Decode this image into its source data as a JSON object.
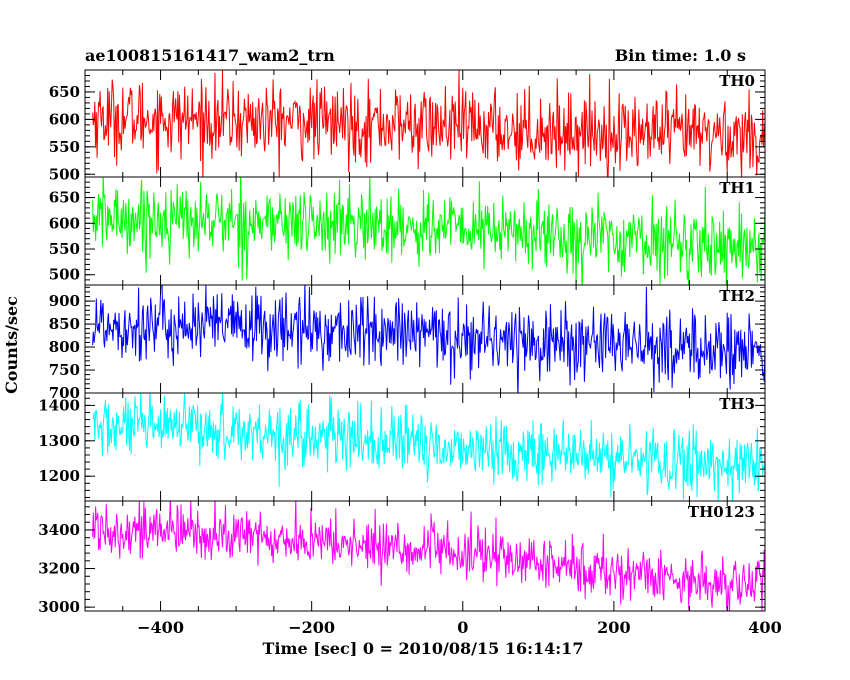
{
  "header": {
    "title": "ae100815161417_wam2_trn",
    "bin_time": "Bin time: 1.0 s"
  },
  "axes": {
    "ylabel": "Counts/sec",
    "xlabel": "Time [sec] 0 = 2010/08/15 16:14:17"
  },
  "chart_data": {
    "type": "line",
    "title": "ae100815161417_wam2_trn",
    "xlabel": "Time [sec] 0 = 2010/08/15 16:14:17",
    "ylabel": "Counts/sec",
    "x_range": [
      -500,
      400
    ],
    "xlim": [
      -500,
      400
    ],
    "xticks": [
      -400,
      -200,
      0,
      200,
      400
    ],
    "panels": [
      {
        "name": "TH0",
        "color": "#ff0000",
        "ylim": [
          495,
          690
        ],
        "yticks": [
          500,
          550,
          600,
          650
        ],
        "trend": [
          [
            -500,
            605
          ],
          [
            -350,
            600
          ],
          [
            -100,
            592
          ],
          [
            100,
            580
          ],
          [
            400,
            570
          ]
        ],
        "spread": 35
      },
      {
        "name": "TH1",
        "color": "#00ff00",
        "ylim": [
          480,
          690
        ],
        "yticks": [
          500,
          550,
          600,
          650
        ],
        "trend": [
          [
            -500,
            612
          ],
          [
            -300,
            605
          ],
          [
            0,
            590
          ],
          [
            200,
            570
          ],
          [
            400,
            555
          ]
        ],
        "spread": 35
      },
      {
        "name": "TH2",
        "color": "#0000ff",
        "ylim": [
          700,
          935
        ],
        "yticks": [
          700,
          750,
          800,
          850,
          900
        ],
        "trend": [
          [
            -500,
            850
          ],
          [
            -300,
            845
          ],
          [
            0,
            822
          ],
          [
            200,
            805
          ],
          [
            400,
            790
          ]
        ],
        "spread": 40
      },
      {
        "name": "TH3",
        "color": "#00ffff",
        "ylim": [
          1130,
          1435
        ],
        "yticks": [
          1200,
          1300,
          1400
        ],
        "trend": [
          [
            -500,
            1340
          ],
          [
            -300,
            1330
          ],
          [
            0,
            1280
          ],
          [
            200,
            1250
          ],
          [
            400,
            1230
          ]
        ],
        "spread": 45
      },
      {
        "name": "TH0123",
        "color": "#ff00ff",
        "ylim": [
          2980,
          3550
        ],
        "yticks": [
          3000,
          3200,
          3400
        ],
        "trend": [
          [
            -500,
            3420
          ],
          [
            -300,
            3370
          ],
          [
            0,
            3280
          ],
          [
            200,
            3180
          ],
          [
            400,
            3110
          ]
        ],
        "spread": 70
      }
    ]
  }
}
